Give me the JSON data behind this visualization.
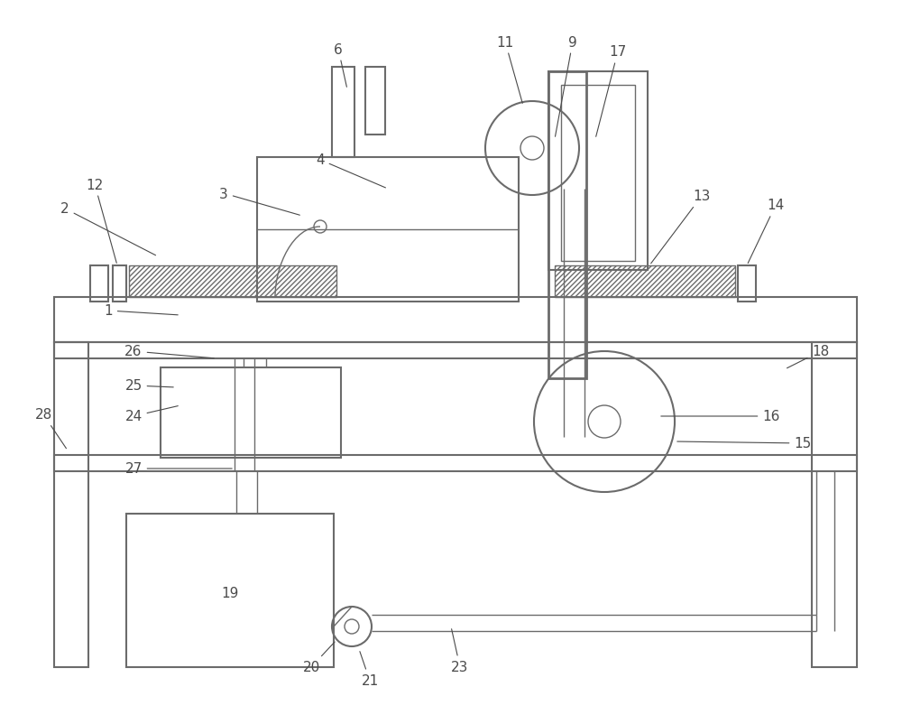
{
  "bg_color": "#ffffff",
  "line_color": "#6b6b6b",
  "label_color": "#4a4a4a",
  "fig_width": 10.0,
  "fig_height": 8.03
}
